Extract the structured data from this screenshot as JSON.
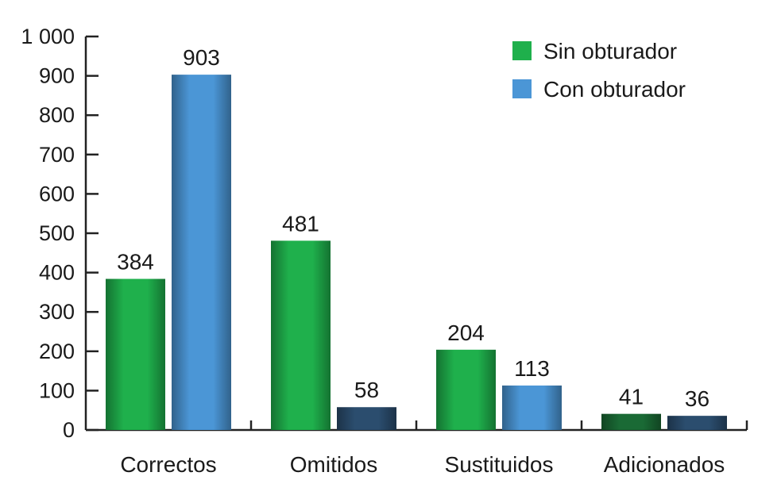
{
  "chart_data": {
    "type": "bar",
    "title": "",
    "xlabel": "",
    "ylabel": "",
    "ylim": [
      0,
      1000
    ],
    "yticks": [
      0,
      100,
      200,
      300,
      400,
      500,
      600,
      700,
      800,
      900,
      1000
    ],
    "ytick_labels": [
      "0",
      "100",
      "200",
      "300",
      "400",
      "500",
      "600",
      "700",
      "800",
      "900",
      "1 000"
    ],
    "grid": false,
    "legend_position": "top-right",
    "categories": [
      "Correctos",
      "Omitidos",
      "Sustituidos",
      "Adicionados"
    ],
    "series": [
      {
        "name": "Sin obturador",
        "values": [
          384,
          481,
          204,
          41
        ],
        "legend_color": "#1fb04c",
        "bar_colors": [
          "#1fb04c",
          "#1fb04c",
          "#1fb04c",
          "#1a6a35"
        ]
      },
      {
        "name": "Con obturador",
        "values": [
          903,
          58,
          113,
          36
        ],
        "legend_color": "#4b96d6",
        "bar_colors": [
          "#4b96d6",
          "#2b4d6e",
          "#4b96d6",
          "#2b4d6e"
        ]
      }
    ]
  }
}
